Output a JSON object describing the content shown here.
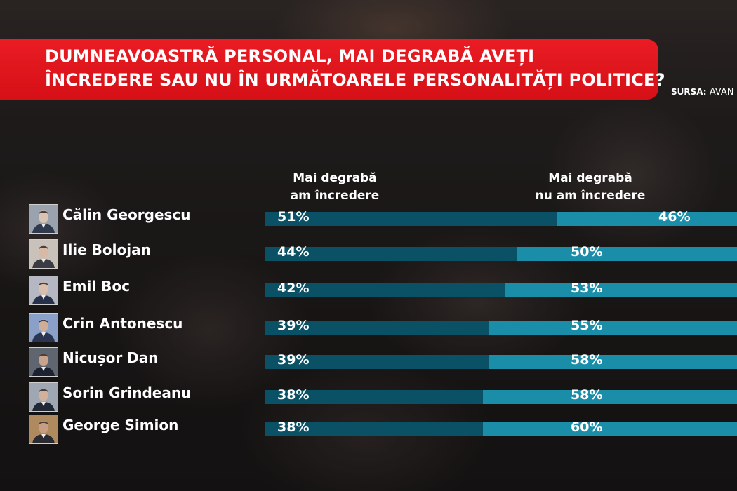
{
  "title": {
    "line1": "DUMNEAVOASTRĂ PERSONAL, MAI DEGRABĂ AVEȚI",
    "line2": "ÎNCREDERE SAU NU ÎN URMĂTOARELE PERSONALITĂȚI POLITICE?"
  },
  "source": {
    "label": "SURSA:",
    "value": "AVAN"
  },
  "colors": {
    "banner": "#e3161d",
    "trust": "#0b5166",
    "distrust": "#1a8ea8"
  },
  "chart_data": {
    "type": "bar",
    "orientation": "horizontal",
    "stacked": true,
    "title": "DUMNEAVOASTRĂ PERSONAL, MAI DEGRABĂ AVEȚI ÎNCREDERE SAU NU ÎN URMĂTOARELE PERSONALITĂȚI POLITICE?",
    "categories": [
      "Călin Georgescu",
      "Ilie Bolojan",
      "Emil Boc",
      "Crin Antonescu",
      "Nicușor Dan",
      "Sorin Grindeanu",
      "George Simion"
    ],
    "series": [
      {
        "name": "Mai degrabă am încredere",
        "values": [
          51,
          44,
          42,
          39,
          39,
          38,
          38
        ],
        "labels": [
          "51%",
          "44%",
          "42%",
          "39%",
          "39%",
          "38%",
          "38%"
        ],
        "color": "#0b5166"
      },
      {
        "name": "Mai degrabă nu am încredere",
        "values": [
          46,
          50,
          53,
          55,
          58,
          58,
          60
        ],
        "labels": [
          "46%",
          "50%",
          "53%",
          "55%",
          "58%",
          "58%",
          "60%"
        ],
        "color": "#1a8ea8"
      }
    ],
    "headers": [
      "Mai degrabă\nam încredere",
      "Mai degrabă\nnu am încredere"
    ],
    "xlim": [
      0,
      100
    ],
    "grid": false,
    "legend": "top"
  }
}
